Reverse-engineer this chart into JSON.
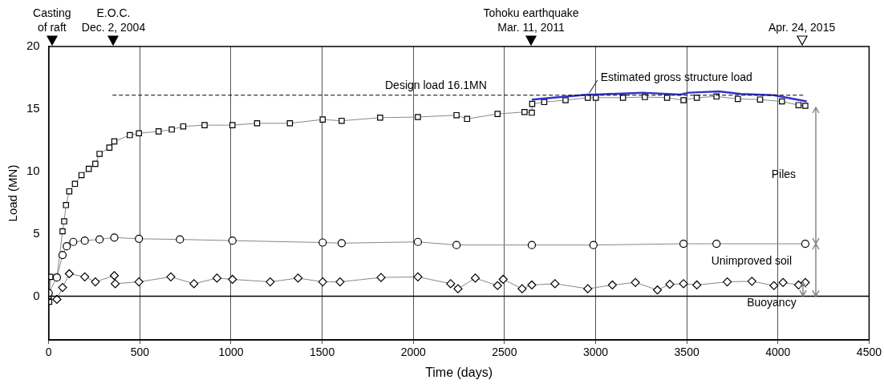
{
  "chart_data": {
    "type": "line",
    "xlabel": "Time (days)",
    "ylabel": "Load (MN)",
    "xlim": [
      0,
      4500
    ],
    "xticks": [
      0,
      500,
      1000,
      1500,
      2000,
      2500,
      3000,
      3500,
      4000,
      4500
    ],
    "ylim": [
      -3.5,
      20
    ],
    "yticks": [
      0,
      5,
      10,
      15,
      20
    ],
    "grid": "x",
    "legend": false,
    "series": [
      {
        "marker": "square",
        "color": "#000000",
        "x": [
          0,
          3,
          9,
          45,
          76,
          85,
          95,
          113,
          144,
          180,
          220,
          256,
          279,
          333,
          360,
          445,
          495,
          603,
          675,
          738,
          855,
          1008,
          1143,
          1323,
          1503,
          1607,
          1818,
          2025,
          2237,
          2295,
          2462,
          2610,
          2650,
          2652,
          2718,
          2835,
          2957,
          3001,
          3150,
          3270,
          3392,
          3482,
          3555,
          3663,
          3780,
          3902,
          4022,
          4113,
          4150
        ],
        "values": [
          0,
          -0.45,
          1.55,
          1.5,
          5.2,
          6,
          7.3,
          8.4,
          9,
          9.7,
          10.2,
          10.6,
          11.4,
          11.9,
          12.4,
          12.9,
          13.05,
          13.2,
          13.35,
          13.6,
          13.7,
          13.7,
          13.85,
          13.85,
          14.15,
          14.05,
          14.3,
          14.35,
          14.5,
          14.2,
          14.6,
          14.75,
          14.7,
          15.4,
          15.55,
          15.7,
          15.9,
          15.9,
          15.9,
          15.95,
          15.9,
          15.7,
          15.9,
          16,
          15.8,
          15.75,
          15.6,
          15.3,
          15.25
        ]
      },
      {
        "marker": "circle",
        "color": "#000000",
        "x": [
          0,
          45,
          76,
          99,
          135,
          198,
          279,
          360,
          495,
          720,
          1008,
          1503,
          1607,
          2025,
          2237,
          2650,
          2988,
          3482,
          3663,
          4150
        ],
        "values": [
          0.25,
          1.5,
          3.3,
          4,
          4.35,
          4.45,
          4.55,
          4.7,
          4.6,
          4.55,
          4.45,
          4.3,
          4.25,
          4.35,
          4.1,
          4.1,
          4.1,
          4.2,
          4.2,
          4.2
        ]
      },
      {
        "marker": "diamond",
        "color": "#000000",
        "x": [
          45,
          76,
          113,
          198,
          256,
          360,
          365,
          495,
          670,
          797,
          923,
          1008,
          1215,
          1368,
          1503,
          1598,
          1823,
          2025,
          2205,
          2245,
          2340,
          2462,
          2493,
          2597,
          2650,
          2777,
          2957,
          3092,
          3218,
          3339,
          3407,
          3482,
          3555,
          3722,
          3857,
          3978,
          4028,
          4113,
          4150
        ],
        "values": [
          -0.25,
          0.7,
          1.8,
          1.55,
          1.15,
          1.65,
          1,
          1.15,
          1.55,
          1,
          1.45,
          1.35,
          1.15,
          1.45,
          1.15,
          1.15,
          1.5,
          1.55,
          1,
          0.6,
          1.45,
          0.85,
          1.35,
          0.6,
          0.9,
          1,
          0.6,
          0.9,
          1.1,
          0.5,
          0.95,
          1,
          0.9,
          1.15,
          1.2,
          0.85,
          1.1,
          0.9,
          1.1
        ]
      },
      {
        "marker": "none",
        "color": "#3333cc",
        "x": [
          2650,
          2957,
          3001,
          3258,
          3465,
          3510,
          3677,
          3798,
          3978,
          4158
        ],
        "values": [
          15.75,
          16.15,
          16.15,
          16.3,
          16.15,
          16.3,
          16.4,
          16.2,
          16.1,
          15.6
        ]
      },
      {
        "marker": "none",
        "line_style": "dashed",
        "color": "#000000",
        "x": [
          350,
          4150
        ],
        "values": [
          16.1,
          16.1
        ]
      }
    ],
    "ref_lines": [
      {
        "axis": "y",
        "value": 0,
        "color": "#000000"
      }
    ],
    "annotations": [
      "Casting\nof raft",
      "E.O.C.\nDec. 2, 2004",
      "Tohoku earthquake\nMar. 11, 2011",
      "Apr. 24, 2015",
      {
        "text": "Design load 16.1MN",
        "x": 2124,
        "y": 16.1
      },
      {
        "text": "Estimated gross structure load",
        "x": 2957,
        "y": 16.15
      },
      "Piles",
      "Unimproved soil",
      "Buoyancy"
    ]
  }
}
